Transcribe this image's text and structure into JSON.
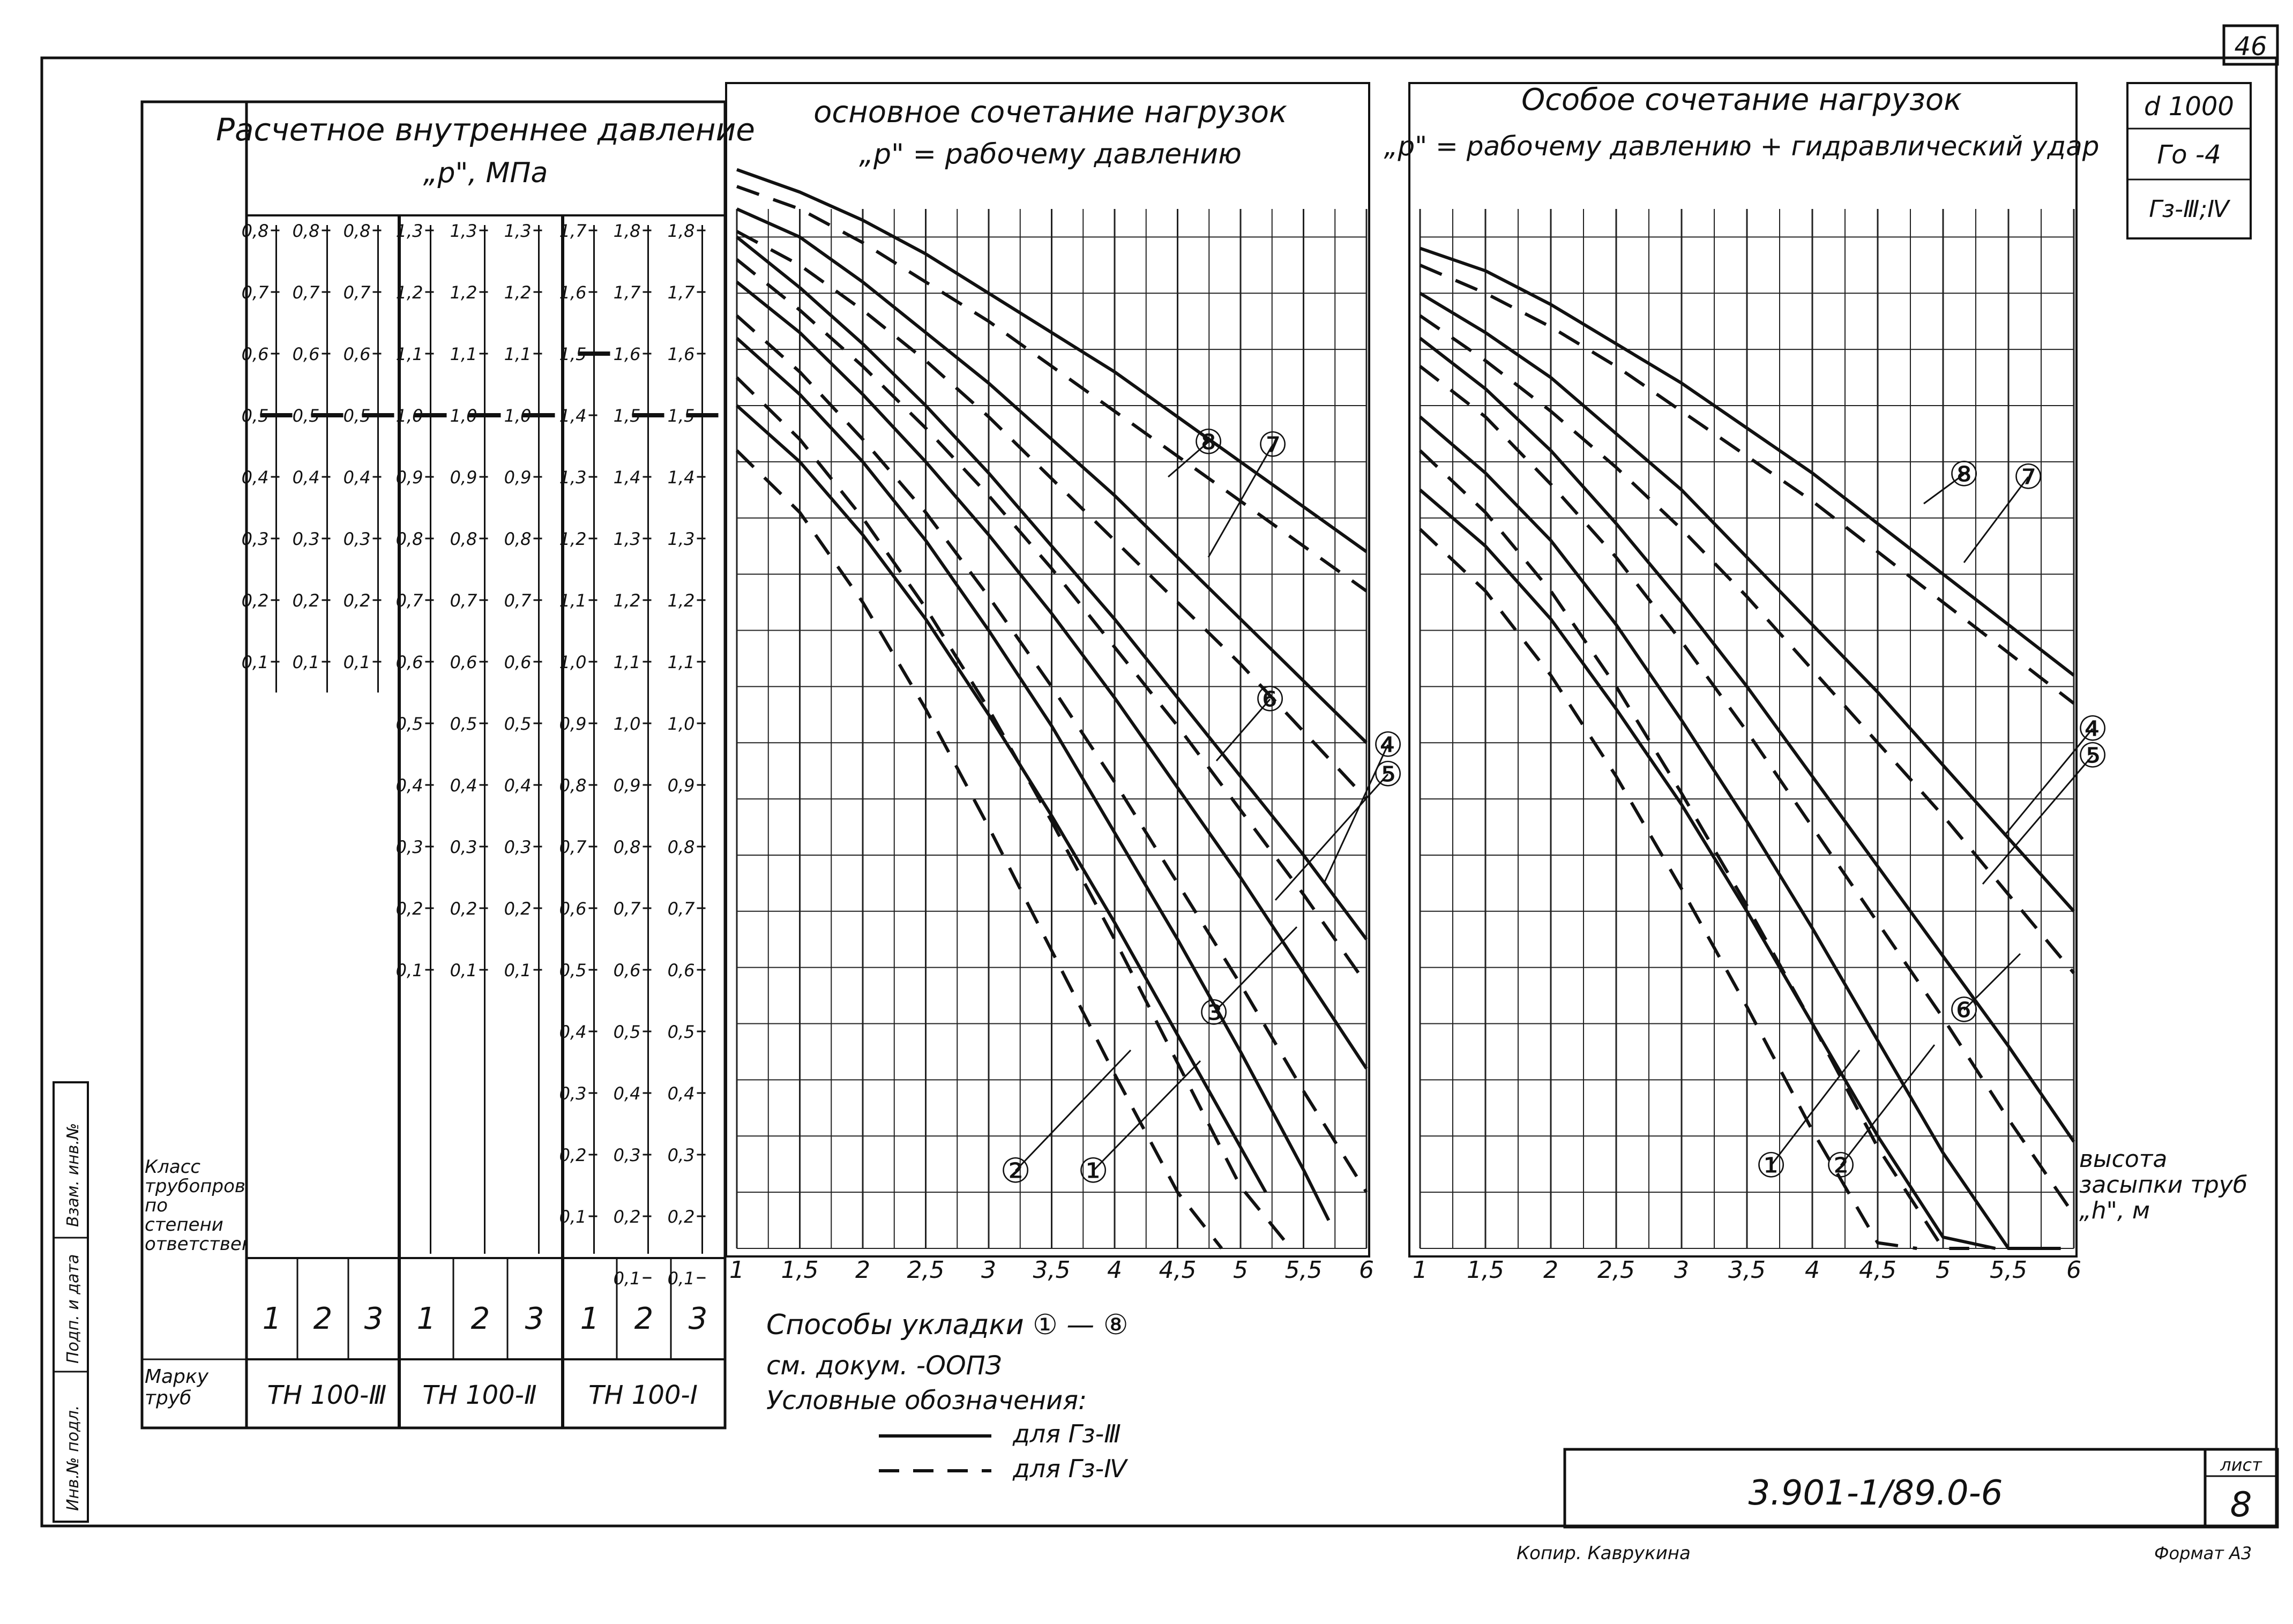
{
  "sheet": {
    "page_number": "46",
    "design_info": [
      "d 1000",
      "Гo -4",
      "Гз-Ⅲ;Ⅳ"
    ],
    "doc_code": "3.901-1/89.0-6",
    "sheet_label": "лист",
    "sheet_number": "8",
    "copied_by": "Копир. Каврукина",
    "format": "Формат А3",
    "side_stamp": [
      "Инв.№ подл.",
      "Подп. и дата",
      "Взам. инв.№"
    ]
  },
  "left_table": {
    "title": "Расчетное внутреннее давление",
    "subtitle": "„р\", МПа",
    "class_label": "Класс трубопровода по степени ответственности",
    "mark_label": "Марку труб",
    "groups": [
      {
        "mark": "ТН 100-Ⅲ",
        "cols": [
          {
            "class": "1",
            "ticks": [
              "0,8",
              "0,7",
              "0,6",
              "0,5",
              "0,4",
              "0,3",
              "0,2",
              "0,1"
            ],
            "top": 0.8,
            "cut": 0.5
          },
          {
            "class": "2",
            "ticks": [
              "0,8",
              "0,7",
              "0,6",
              "0,5",
              "0,4",
              "0,3",
              "0,2",
              "0,1"
            ],
            "top": 0.8,
            "cut": 0.5
          },
          {
            "class": "3",
            "ticks": [
              "0,8",
              "0,7",
              "0,6",
              "0,5",
              "0,4",
              "0,3",
              "0,2",
              "0,1"
            ],
            "top": 0.8,
            "cut": 0.5
          }
        ]
      },
      {
        "mark": "ТН 100-Ⅱ",
        "cols": [
          {
            "class": "1",
            "ticks": [
              "1,3",
              "1,2",
              "1,1",
              "1,0",
              "0,9",
              "0,8",
              "0,7",
              "0,6",
              "0,5",
              "0,4",
              "0,3",
              "0,2",
              "0,1"
            ],
            "top": 1.3,
            "cut": 1.0
          },
          {
            "class": "2",
            "ticks": [
              "1,3",
              "1,2",
              "1,1",
              "1,0",
              "0,9",
              "0,8",
              "0,7",
              "0,6",
              "0,5",
              "0,4",
              "0,3",
              "0,2",
              "0,1"
            ],
            "top": 1.3,
            "cut": 1.0
          },
          {
            "class": "3",
            "ticks": [
              "1,3",
              "1,2",
              "1,1",
              "1,0",
              "0,9",
              "0,8",
              "0,7",
              "0,6",
              "0,5",
              "0,4",
              "0,3",
              "0,2",
              "0,1"
            ],
            "top": 1.3,
            "cut": 1.0
          }
        ]
      },
      {
        "mark": "ТН 100-Ⅰ",
        "cols": [
          {
            "class": "1",
            "ticks": [
              "1,7",
              "1,6",
              "1,5",
              "1,4",
              "1,3",
              "1,2",
              "1,1",
              "1,0",
              "0,9",
              "0,8",
              "0,7",
              "0,6",
              "0,5",
              "0,4",
              "0,3",
              "0,2",
              "0,1"
            ],
            "top": 1.7,
            "cut": 1.5
          },
          {
            "class": "2",
            "ticks": [
              "1,8",
              "1,7",
              "1,6",
              "1,5",
              "1,4",
              "1,3",
              "1,2",
              "1,1",
              "1,0",
              "0,9",
              "0,8",
              "0,7",
              "0,6",
              "0,5",
              "0,4",
              "0,3",
              "0,2",
              "0,1"
            ],
            "top": 1.8,
            "cut": 1.5
          },
          {
            "class": "3",
            "ticks": [
              "1,8",
              "1,7",
              "1,6",
              "1,5",
              "1,4",
              "1,3",
              "1,2",
              "1,1",
              "1,0",
              "0,9",
              "0,8",
              "0,7",
              "0,6",
              "0,5",
              "0,4",
              "0,3",
              "0,2",
              "0,1"
            ],
            "top": 1.8,
            "cut": 1.5
          }
        ]
      }
    ]
  },
  "chart_data": [
    {
      "type": "line",
      "title": "основное сочетание нагрузок",
      "subtitle": "„р\" = рабочему давлению",
      "x_ticks": [
        "1",
        "1,5",
        "2",
        "2,5",
        "3",
        "3,5",
        "4",
        "4,5",
        "5",
        "5,5",
        "6"
      ],
      "xlim": [
        1,
        6
      ],
      "ylim": [
        0,
        1.85
      ],
      "grid": true,
      "curve_labels": [
        "①",
        "②",
        "③",
        "④",
        "⑤",
        "⑥",
        "⑦",
        "⑧"
      ],
      "series": [
        {
          "name": "1",
          "style": "solid",
          "x": [
            1,
            1.5,
            2,
            2.5,
            3,
            3.5,
            4,
            4.5,
            5,
            5.2
          ],
          "y": [
            1.5,
            1.4,
            1.27,
            1.12,
            0.95,
            0.77,
            0.58,
            0.38,
            0.18,
            0.1
          ]
        },
        {
          "name": "1",
          "style": "dashed",
          "x": [
            1,
            1.5,
            2,
            2.5,
            3,
            3.5,
            4,
            4.5,
            4.85
          ],
          "y": [
            1.42,
            1.31,
            1.15,
            0.96,
            0.75,
            0.53,
            0.31,
            0.1,
            0.0
          ]
        },
        {
          "name": "2",
          "style": "solid",
          "x": [
            1,
            1.5,
            2,
            2.5,
            3,
            3.5,
            4,
            4.5,
            5,
            5.5,
            5.7
          ],
          "y": [
            1.62,
            1.52,
            1.4,
            1.26,
            1.1,
            0.93,
            0.74,
            0.55,
            0.35,
            0.14,
            0.05
          ]
        },
        {
          "name": "2",
          "style": "dashed",
          "x": [
            1,
            1.5,
            2,
            2.5,
            3,
            3.5,
            4,
            4.5,
            5,
            5.4
          ],
          "y": [
            1.55,
            1.44,
            1.3,
            1.14,
            0.96,
            0.76,
            0.55,
            0.33,
            0.11,
            0.0
          ]
        },
        {
          "name": "3",
          "style": "solid",
          "x": [
            1,
            1.5,
            2,
            2.5,
            3,
            3.5,
            4,
            4.5,
            5,
            5.5,
            6
          ],
          "y": [
            1.72,
            1.63,
            1.52,
            1.4,
            1.27,
            1.13,
            0.98,
            0.82,
            0.66,
            0.49,
            0.32
          ]
        },
        {
          "name": "3",
          "style": "dashed",
          "x": [
            1,
            1.5,
            2,
            2.5,
            3,
            3.5,
            4,
            4.5,
            5,
            5.5,
            6
          ],
          "y": [
            1.66,
            1.56,
            1.44,
            1.31,
            1.16,
            1.0,
            0.83,
            0.65,
            0.47,
            0.28,
            0.1
          ]
        },
        {
          "name": "5",
          "style": "solid",
          "x": [
            1,
            1.5,
            2,
            2.5,
            3,
            3.5,
            4,
            4.5,
            5,
            5.5,
            6
          ],
          "y": [
            1.8,
            1.71,
            1.61,
            1.5,
            1.38,
            1.25,
            1.12,
            0.98,
            0.84,
            0.7,
            0.55
          ]
        },
        {
          "name": "4",
          "style": "dashed",
          "x": [
            1,
            1.5,
            2,
            2.5,
            3,
            3.5,
            4,
            4.5,
            5,
            5.5,
            6
          ],
          "y": [
            1.76,
            1.67,
            1.57,
            1.46,
            1.34,
            1.21,
            1.07,
            0.93,
            0.78,
            0.63,
            0.47
          ]
        },
        {
          "name": "6",
          "style": "solid",
          "x": [
            1,
            1.5,
            2,
            2.5,
            3,
            3.5,
            4,
            4.5,
            5,
            5.5,
            6
          ],
          "y": [
            1.85,
            1.8,
            1.72,
            1.63,
            1.54,
            1.44,
            1.34,
            1.23,
            1.12,
            1.01,
            0.9
          ]
        },
        {
          "name": "6",
          "style": "dashed",
          "x": [
            1,
            1.5,
            2,
            2.5,
            3,
            3.5,
            4,
            4.5,
            5,
            5.5,
            6
          ],
          "y": [
            1.81,
            1.75,
            1.67,
            1.58,
            1.48,
            1.37,
            1.26,
            1.15,
            1.04,
            0.92,
            0.8
          ]
        },
        {
          "name": "7",
          "style": "solid",
          "x": [
            1,
            1.5,
            2,
            2.5,
            3,
            3.5,
            4,
            4.5,
            5,
            5.5,
            6
          ],
          "y": [
            1.92,
            1.88,
            1.83,
            1.77,
            1.7,
            1.63,
            1.56,
            1.48,
            1.4,
            1.32,
            1.24
          ]
        },
        {
          "name": "8",
          "style": "dashed",
          "x": [
            1,
            1.5,
            2,
            2.5,
            3,
            3.5,
            4,
            4.5,
            5,
            5.5,
            6
          ],
          "y": [
            1.89,
            1.85,
            1.79,
            1.72,
            1.65,
            1.57,
            1.49,
            1.41,
            1.33,
            1.25,
            1.17
          ]
        }
      ]
    },
    {
      "type": "line",
      "title": "Особое сочетание нагрузок",
      "subtitle": "„р\" = рабочему давлению + гидравлический удар",
      "x_ticks": [
        "1",
        "1,5",
        "2",
        "2,5",
        "3",
        "3,5",
        "4",
        "4,5",
        "5",
        "5,5",
        "6"
      ],
      "xlabel": "высота засыпки труб „h\", м",
      "xlim": [
        1,
        6
      ],
      "ylim": [
        0,
        1.85
      ],
      "grid": true,
      "curve_labels": [
        "①",
        "②",
        "④",
        "⑤",
        "⑥",
        "⑦",
        "⑧"
      ],
      "series": [
        {
          "name": "1",
          "style": "solid",
          "x": [
            1,
            1.5,
            2,
            2.5,
            3,
            3.5,
            4,
            4.5,
            5,
            5.4
          ],
          "y": [
            1.35,
            1.25,
            1.12,
            0.96,
            0.79,
            0.6,
            0.4,
            0.2,
            0.02,
            0.0
          ]
        },
        {
          "name": "1",
          "style": "dashed",
          "x": [
            1,
            1.5,
            2,
            2.5,
            3,
            3.5,
            4,
            4.5,
            4.8
          ],
          "y": [
            1.28,
            1.17,
            1.02,
            0.84,
            0.64,
            0.43,
            0.21,
            0.01,
            0.0
          ]
        },
        {
          "name": "2",
          "style": "solid",
          "x": [
            1,
            1.5,
            2,
            2.5,
            3,
            3.5,
            4,
            4.5,
            5,
            5.5,
            5.9
          ],
          "y": [
            1.48,
            1.38,
            1.26,
            1.11,
            0.94,
            0.76,
            0.57,
            0.37,
            0.17,
            0.0,
            0.0
          ]
        },
        {
          "name": "2",
          "style": "dashed",
          "x": [
            1,
            1.5,
            2,
            2.5,
            3,
            3.5,
            4,
            4.5,
            5,
            5.2
          ],
          "y": [
            1.42,
            1.31,
            1.17,
            1.0,
            0.81,
            0.61,
            0.4,
            0.18,
            0.0,
            0.0
          ]
        },
        {
          "name": "5",
          "style": "solid",
          "x": [
            1,
            1.5,
            2,
            2.5,
            3,
            3.5,
            4,
            4.5,
            5,
            5.5,
            6
          ],
          "y": [
            1.62,
            1.53,
            1.42,
            1.29,
            1.15,
            1.0,
            0.84,
            0.68,
            0.52,
            0.36,
            0.19
          ]
        },
        {
          "name": "4",
          "style": "dashed",
          "x": [
            1,
            1.5,
            2,
            2.5,
            3,
            3.5,
            4,
            4.5,
            5,
            5.5,
            6
          ],
          "y": [
            1.57,
            1.48,
            1.36,
            1.23,
            1.08,
            0.92,
            0.75,
            0.58,
            0.41,
            0.23,
            0.06
          ]
        },
        {
          "name": "6",
          "style": "solid",
          "x": [
            1,
            1.5,
            2,
            2.5,
            3,
            3.5,
            4,
            4.5,
            5,
            5.5,
            6
          ],
          "y": [
            1.7,
            1.63,
            1.55,
            1.45,
            1.35,
            1.23,
            1.11,
            0.99,
            0.86,
            0.73,
            0.6
          ]
        },
        {
          "name": "6",
          "style": "dashed",
          "x": [
            1,
            1.5,
            2,
            2.5,
            3,
            3.5,
            4,
            4.5,
            5,
            5.5,
            6
          ],
          "y": [
            1.66,
            1.58,
            1.49,
            1.39,
            1.28,
            1.16,
            1.03,
            0.9,
            0.77,
            0.63,
            0.49
          ]
        },
        {
          "name": "7",
          "style": "solid",
          "x": [
            1,
            1.5,
            2,
            2.5,
            3,
            3.5,
            4,
            4.5,
            5,
            5.5,
            6
          ],
          "y": [
            1.78,
            1.74,
            1.68,
            1.61,
            1.54,
            1.46,
            1.38,
            1.29,
            1.2,
            1.11,
            1.02
          ]
        },
        {
          "name": "8",
          "style": "dashed",
          "x": [
            1,
            1.5,
            2,
            2.5,
            3,
            3.5,
            4,
            4.5,
            5,
            5.5,
            6
          ],
          "y": [
            1.75,
            1.7,
            1.64,
            1.57,
            1.49,
            1.41,
            1.33,
            1.24,
            1.15,
            1.06,
            0.97
          ]
        }
      ]
    }
  ],
  "legend": {
    "methods": "Способы укладки ① — ⑧",
    "ref": "см. докум. -ООПЗ",
    "conventions": "Условные обозначения:",
    "solid_label": "для Гз-Ⅲ",
    "dashed_label": "для Гз-Ⅳ"
  }
}
